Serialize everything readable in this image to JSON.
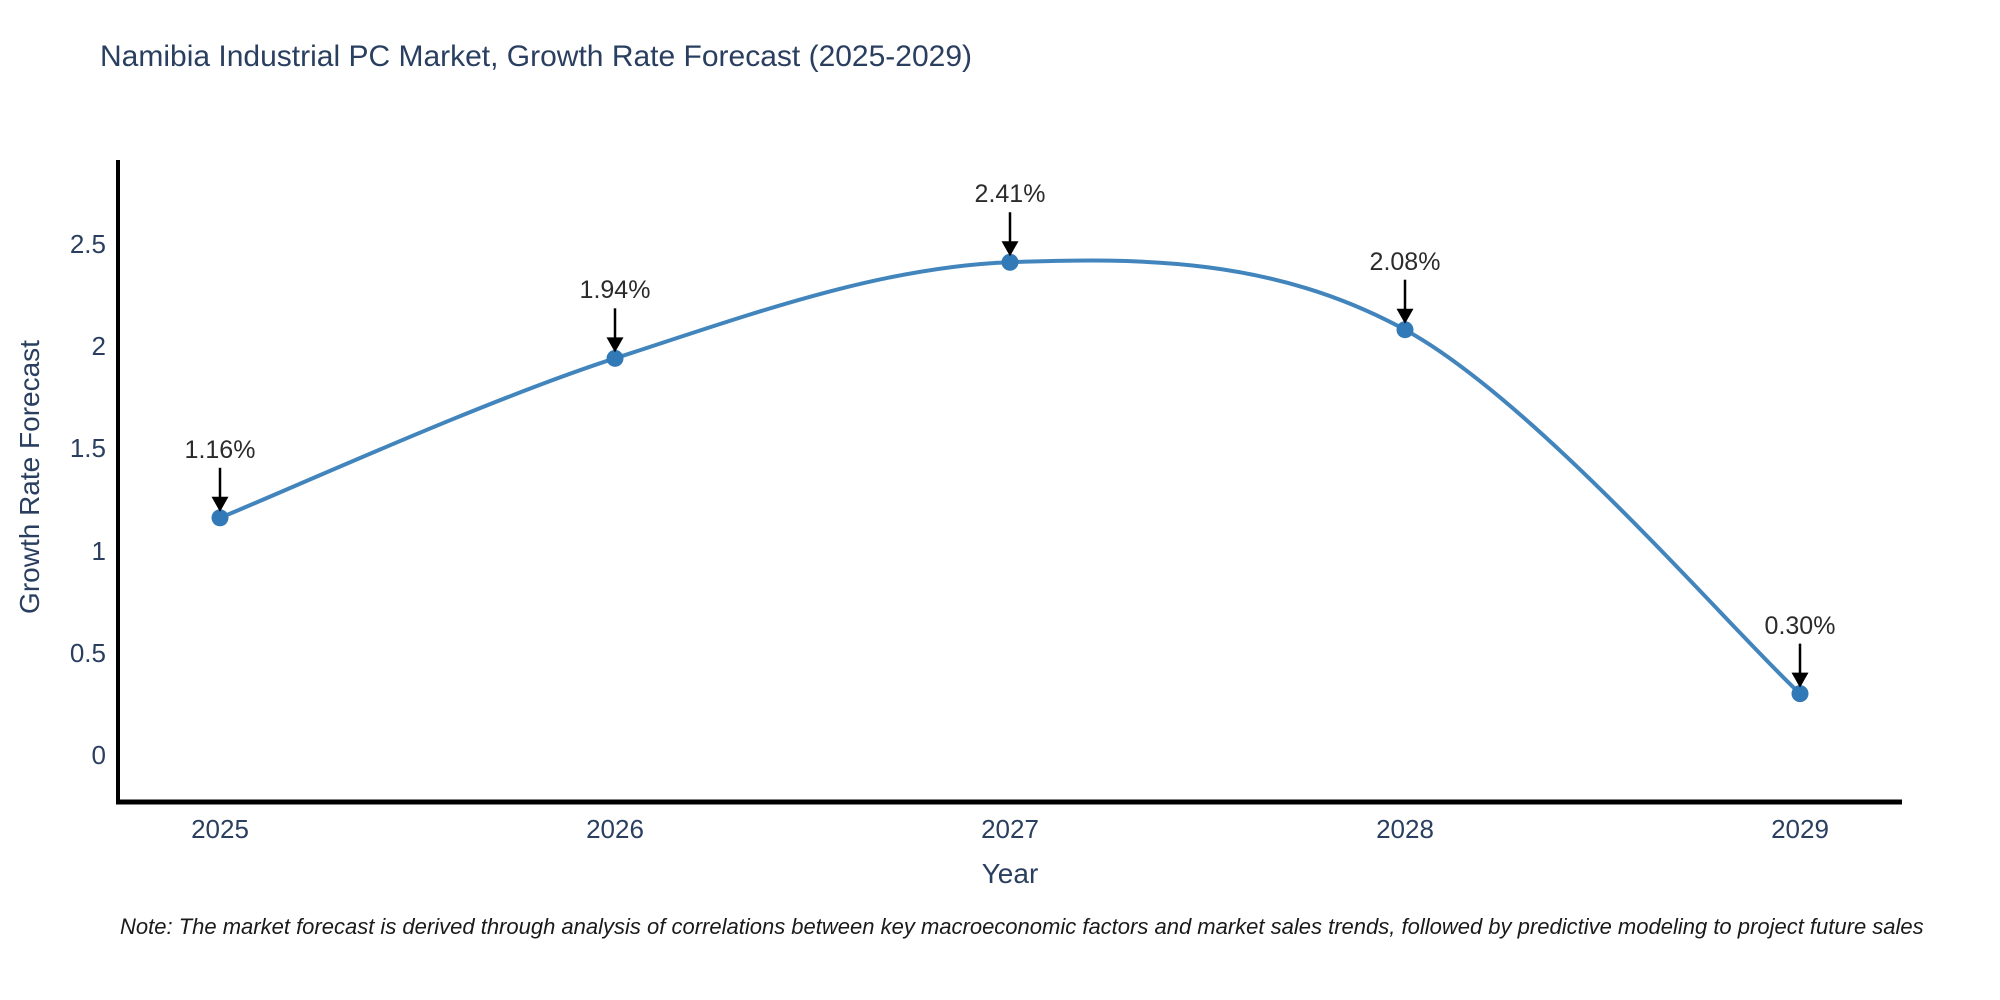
{
  "chart_data": {
    "type": "line",
    "line_shape": "spline",
    "title": "Namibia Industrial PC Market, Growth Rate Forecast (2025-2029)",
    "xlabel": "Year",
    "ylabel": "Growth Rate Forecast",
    "categories": [
      "2025",
      "2026",
      "2027",
      "2028",
      "2029"
    ],
    "series": [
      {
        "name": "Growth Rate Forecast",
        "values": [
          1.16,
          1.94,
          2.41,
          2.08,
          0.3
        ],
        "point_labels": [
          "1.16%",
          "1.94%",
          "2.41%",
          "2.08%",
          "0.30%"
        ]
      }
    ],
    "ylim": [
      -0.23,
      2.91
    ],
    "yticks": {
      "values": [
        0,
        0.5,
        1,
        1.5,
        2,
        2.5
      ],
      "labels": [
        "0",
        "0.5",
        "1",
        "1.5",
        "2",
        "2.5"
      ]
    },
    "grid": false,
    "legend": "none",
    "annotations": {
      "note": "Note: The market forecast is derived through analysis of correlations between key macroeconomic factors and market sales trends, followed by predictive modeling to project future sales"
    },
    "colors": {
      "line": "#4285bd",
      "marker": "#3279b7",
      "axis": "#000000",
      "text": "#2a3f5f",
      "annotation_text": "#2b2b2b",
      "arrow": "#000000",
      "background": "#ffffff"
    }
  }
}
